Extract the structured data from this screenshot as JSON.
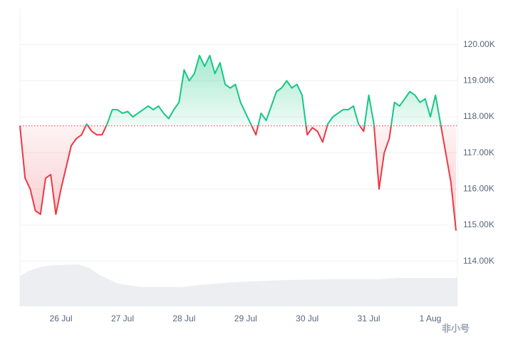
{
  "chart_data": {
    "type": "line",
    "categories": [
      null,
      null,
      null,
      null,
      null,
      null,
      null,
      null,
      "26 Jul",
      null,
      null,
      null,
      null,
      null,
      null,
      null,
      null,
      null,
      null,
      null,
      "27 Jul",
      null,
      null,
      null,
      null,
      null,
      null,
      null,
      null,
      null,
      null,
      null,
      "28 Jul",
      null,
      null,
      null,
      null,
      null,
      null,
      null,
      null,
      null,
      null,
      null,
      "29 Jul",
      null,
      null,
      null,
      null,
      null,
      null,
      null,
      null,
      null,
      null,
      null,
      "30 Jul",
      null,
      null,
      null,
      null,
      null,
      null,
      null,
      null,
      null,
      null,
      null,
      "31 Jul",
      null,
      null,
      null,
      null,
      null,
      null,
      null,
      null,
      null,
      null,
      null,
      "1 Aug",
      null,
      null,
      null,
      null,
      null
    ],
    "values": [
      117750,
      116300,
      116000,
      115400,
      115300,
      116300,
      116400,
      115300,
      116000,
      116600,
      117200,
      117400,
      117500,
      117800,
      117600,
      117500,
      117500,
      117800,
      118200,
      118200,
      118100,
      118150,
      118000,
      118100,
      118200,
      118300,
      118200,
      118300,
      118100,
      117950,
      118200,
      118400,
      119300,
      119000,
      119200,
      119700,
      119400,
      119700,
      119200,
      119500,
      118900,
      118800,
      118900,
      118400,
      118100,
      117800,
      117500,
      118100,
      117900,
      118300,
      118700,
      118800,
      119000,
      118800,
      118900,
      118600,
      117500,
      117700,
      117600,
      117300,
      117800,
      118000,
      118100,
      118200,
      118200,
      118300,
      117800,
      117600,
      118600,
      117800,
      116000,
      117000,
      117400,
      118400,
      118300,
      118500,
      118700,
      118600,
      118400,
      118500,
      118000,
      118600,
      117800,
      117000,
      116200,
      114850
    ],
    "baseline": 117750,
    "colors": {
      "up": "#16c784",
      "down": "#ea3943"
    },
    "ylim": [
      112750,
      121000
    ],
    "yticks": [
      {
        "value": 114000,
        "label": "114.00K"
      },
      {
        "value": 115000,
        "label": "115.00K"
      },
      {
        "value": 116000,
        "label": "116.00K"
      },
      {
        "value": 117000,
        "label": "117.00K"
      },
      {
        "value": 118000,
        "label": "118.00K"
      },
      {
        "value": 119000,
        "label": "119.00K"
      },
      {
        "value": 120000,
        "label": "120.00K"
      }
    ],
    "grid": true,
    "watermark": "非小号"
  }
}
